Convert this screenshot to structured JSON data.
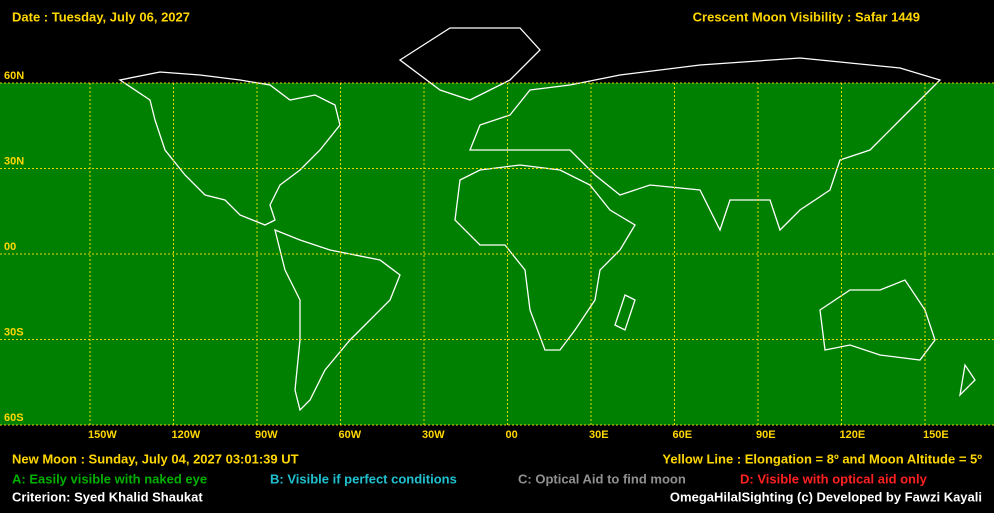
{
  "header": {
    "date": "Date : Tuesday, July 06, 2027",
    "title": "Crescent Moon Visibility : Safar  1449"
  },
  "map": {
    "lat_labels": [
      "60N",
      "30N",
      "00",
      "30S",
      "60S"
    ],
    "lon_labels": [
      "150W",
      "120W",
      "90W",
      "60W",
      "30W",
      "00",
      "30E",
      "60E",
      "90E",
      "120E",
      "150E"
    ]
  },
  "footer": {
    "new_moon": "New Moon : Sunday, July 04, 2027  03:01:39  UT",
    "yellow_line": "Yellow Line : Elongation = 8º  and Moon Altitude = 5º",
    "legend": [
      "A: Easily visible with naked eye",
      "B: Visible if perfect conditions",
      "C: Optical Aid to find moon",
      "D: Visible with optical aid only"
    ],
    "criterion": "Criterion: Syed Khalid Shaukat",
    "credit": "OmegaHilalSighting  (c)  Developed by Fawzi Kayali"
  }
}
